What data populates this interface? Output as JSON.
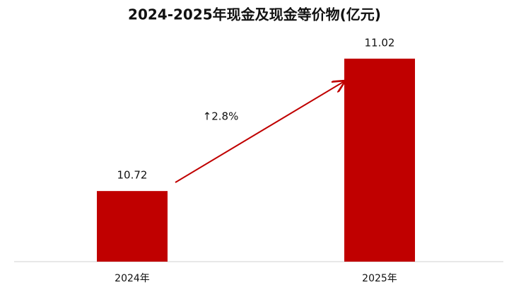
{
  "chart_data": {
    "type": "bar",
    "title": "2024-2025年现金及现金等价物(亿元)",
    "categories": [
      "2024年",
      "2025年"
    ],
    "values": [
      10.72,
      11.02
    ],
    "color": "#c00000",
    "annotation": "↑2.8%",
    "ylim": [
      10.56,
      11.1
    ]
  }
}
